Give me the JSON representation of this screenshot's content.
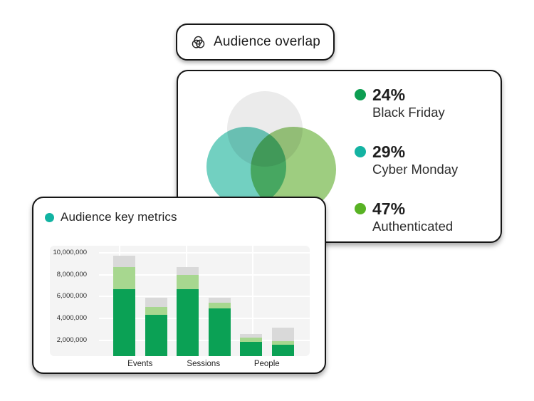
{
  "badge": {
    "label": "Audience overlap"
  },
  "chart_data": [
    {
      "type": "venn",
      "title": "Audience overlap",
      "legend": [
        {
          "value": "24%",
          "label": "Black Friday",
          "dot_color": "#0d9e52"
        },
        {
          "value": "29%",
          "label": "Cyber Monday",
          "dot_color": "#14b3a2"
        },
        {
          "value": "47%",
          "label": "Authenticated",
          "dot_color": "#58b224"
        }
      ],
      "circles": [
        {
          "name": "gray",
          "color": "#ebebeb"
        },
        {
          "name": "teal",
          "color": "#72d0c1"
        },
        {
          "name": "green",
          "color": "#9ecd80"
        }
      ]
    },
    {
      "type": "stacked-bar",
      "title": "Audience key metrics",
      "title_dot_color": "#12b3a2",
      "categories": [
        "Events",
        "Sessions",
        "People"
      ],
      "bars_per_category": 2,
      "series": [
        {
          "name": "bottom-green",
          "color": "#0ba155",
          "values": [
            6670000,
            4350000,
            6670000,
            4920000,
            1870000,
            1570000
          ]
        },
        {
          "name": "middle-light-green",
          "color": "#a7d78f",
          "values": [
            2010000,
            680000,
            1310000,
            500000,
            350000,
            370000
          ]
        },
        {
          "name": "top-gray",
          "color": "#d9d9d9",
          "values": [
            1090000,
            870000,
            740000,
            480000,
            370000,
            1220000
          ]
        }
      ],
      "totals": [
        9770000,
        5900000,
        8720000,
        5900000,
        2590000,
        3160000
      ],
      "y_tick_values": [
        2000000,
        4000000,
        6000000,
        8000000,
        10000000
      ],
      "y_tick_labels": [
        "2,000,000",
        "4,000,000",
        "6,000,000",
        "8,000,000",
        "10,000,000"
      ],
      "ylim": [
        0,
        10660000
      ],
      "grid": true,
      "plot_background": "#f4f4f4",
      "gridline_color": "#ffffff"
    }
  ]
}
